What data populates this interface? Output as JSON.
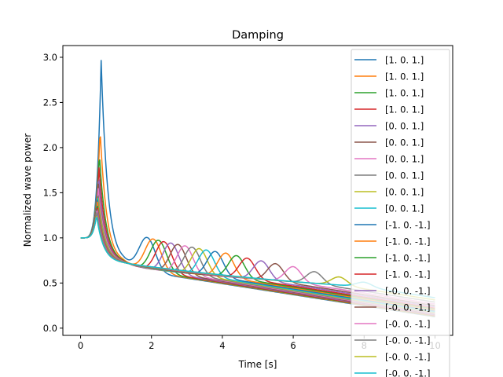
{
  "chart_data": {
    "type": "line",
    "title": "Damping",
    "xlabel": "Time [s]",
    "ylabel": "Normalized wave power",
    "xlim": [
      -0.5,
      10.5
    ],
    "ylim": [
      -0.08,
      3.13
    ],
    "xticks": [
      0,
      2,
      4,
      6,
      8,
      10
    ],
    "xtick_labels": [
      "0",
      "2",
      "4",
      "6",
      "8",
      "10"
    ],
    "yticks": [
      0.0,
      0.5,
      1.0,
      1.5,
      2.0,
      2.5,
      3.0
    ],
    "ytick_labels": [
      "0.0",
      "0.5",
      "1.0",
      "1.5",
      "2.0",
      "2.5",
      "3.0"
    ],
    "grid": false,
    "legend_position": "top-right",
    "series": [
      {
        "name": "[1. 0. 1.]",
        "color": "#1f77b4",
        "peak_t": 0.58,
        "peak": 2.97,
        "t2": 1.88,
        "a2": 0.93
      },
      {
        "name": "[1. 0. 1.]",
        "color": "#ff7f0e",
        "peak_t": 0.55,
        "peak": 2.2,
        "t2": 2.05,
        "a2": 0.92
      },
      {
        "name": "[1. 0. 1.]",
        "color": "#2ca02c",
        "peak_t": 0.53,
        "peak": 1.93,
        "t2": 2.2,
        "a2": 0.91
      },
      {
        "name": "[1. 0. 1.]",
        "color": "#d62728",
        "peak_t": 0.52,
        "peak": 1.78,
        "t2": 2.35,
        "a2": 0.9
      },
      {
        "name": "[0. 0. 1.]",
        "color": "#9467bd",
        "peak_t": 0.51,
        "peak": 1.68,
        "t2": 2.55,
        "a2": 0.89
      },
      {
        "name": "[0. 0. 1.]",
        "color": "#8c564b",
        "peak_t": 0.5,
        "peak": 1.6,
        "t2": 2.75,
        "a2": 0.88
      },
      {
        "name": "[0. 0. 1.]",
        "color": "#e377c2",
        "peak_t": 0.5,
        "peak": 1.55,
        "t2": 2.95,
        "a2": 0.87
      },
      {
        "name": "[0. 0. 1.]",
        "color": "#7f7f7f",
        "peak_t": 0.49,
        "peak": 1.5,
        "t2": 3.15,
        "a2": 0.86
      },
      {
        "name": "[0. 0. 1.]",
        "color": "#bcbd22",
        "peak_t": 0.49,
        "peak": 1.47,
        "t2": 3.35,
        "a2": 0.85
      },
      {
        "name": "[0. 0. 1.]",
        "color": "#17becf",
        "peak_t": 0.48,
        "peak": 1.44,
        "t2": 3.55,
        "a2": 0.84
      },
      {
        "name": "[-1.  0. -1.]",
        "color": "#1f77b4",
        "peak_t": 0.48,
        "peak": 1.42,
        "t2": 3.8,
        "a2": 0.83
      },
      {
        "name": "[-1.  0. -1.]",
        "color": "#ff7f0e",
        "peak_t": 0.48,
        "peak": 1.4,
        "t2": 4.1,
        "a2": 0.82
      },
      {
        "name": "[-1.  0. -1.]",
        "color": "#2ca02c",
        "peak_t": 0.47,
        "peak": 1.38,
        "t2": 4.4,
        "a2": 0.8
      },
      {
        "name": "[-1.  0. -1.]",
        "color": "#d62728",
        "peak_t": 0.47,
        "peak": 1.36,
        "t2": 4.7,
        "a2": 0.78
      },
      {
        "name": "[-0.  0. -1.]",
        "color": "#9467bd",
        "peak_t": 0.47,
        "peak": 1.34,
        "t2": 5.1,
        "a2": 0.76
      },
      {
        "name": "[-0.  0. -1.]",
        "color": "#8c564b",
        "peak_t": 0.46,
        "peak": 1.32,
        "t2": 5.5,
        "a2": 0.74
      },
      {
        "name": "[-0.  0. -1.]",
        "color": "#e377c2",
        "peak_t": 0.46,
        "peak": 1.3,
        "t2": 6.0,
        "a2": 0.72
      },
      {
        "name": "[-0.  0. -1.]",
        "color": "#7f7f7f",
        "peak_t": 0.46,
        "peak": 1.28,
        "t2": 6.6,
        "a2": 0.68
      },
      {
        "name": "[-0.  0. -1.]",
        "color": "#bcbd22",
        "peak_t": 0.45,
        "peak": 1.26,
        "t2": 7.3,
        "a2": 0.64
      },
      {
        "name": "[-0.  0. -1.]",
        "color": "#17becf",
        "peak_t": 0.45,
        "peak": 1.25,
        "t2": 8.0,
        "a2": 0.6
      }
    ]
  }
}
